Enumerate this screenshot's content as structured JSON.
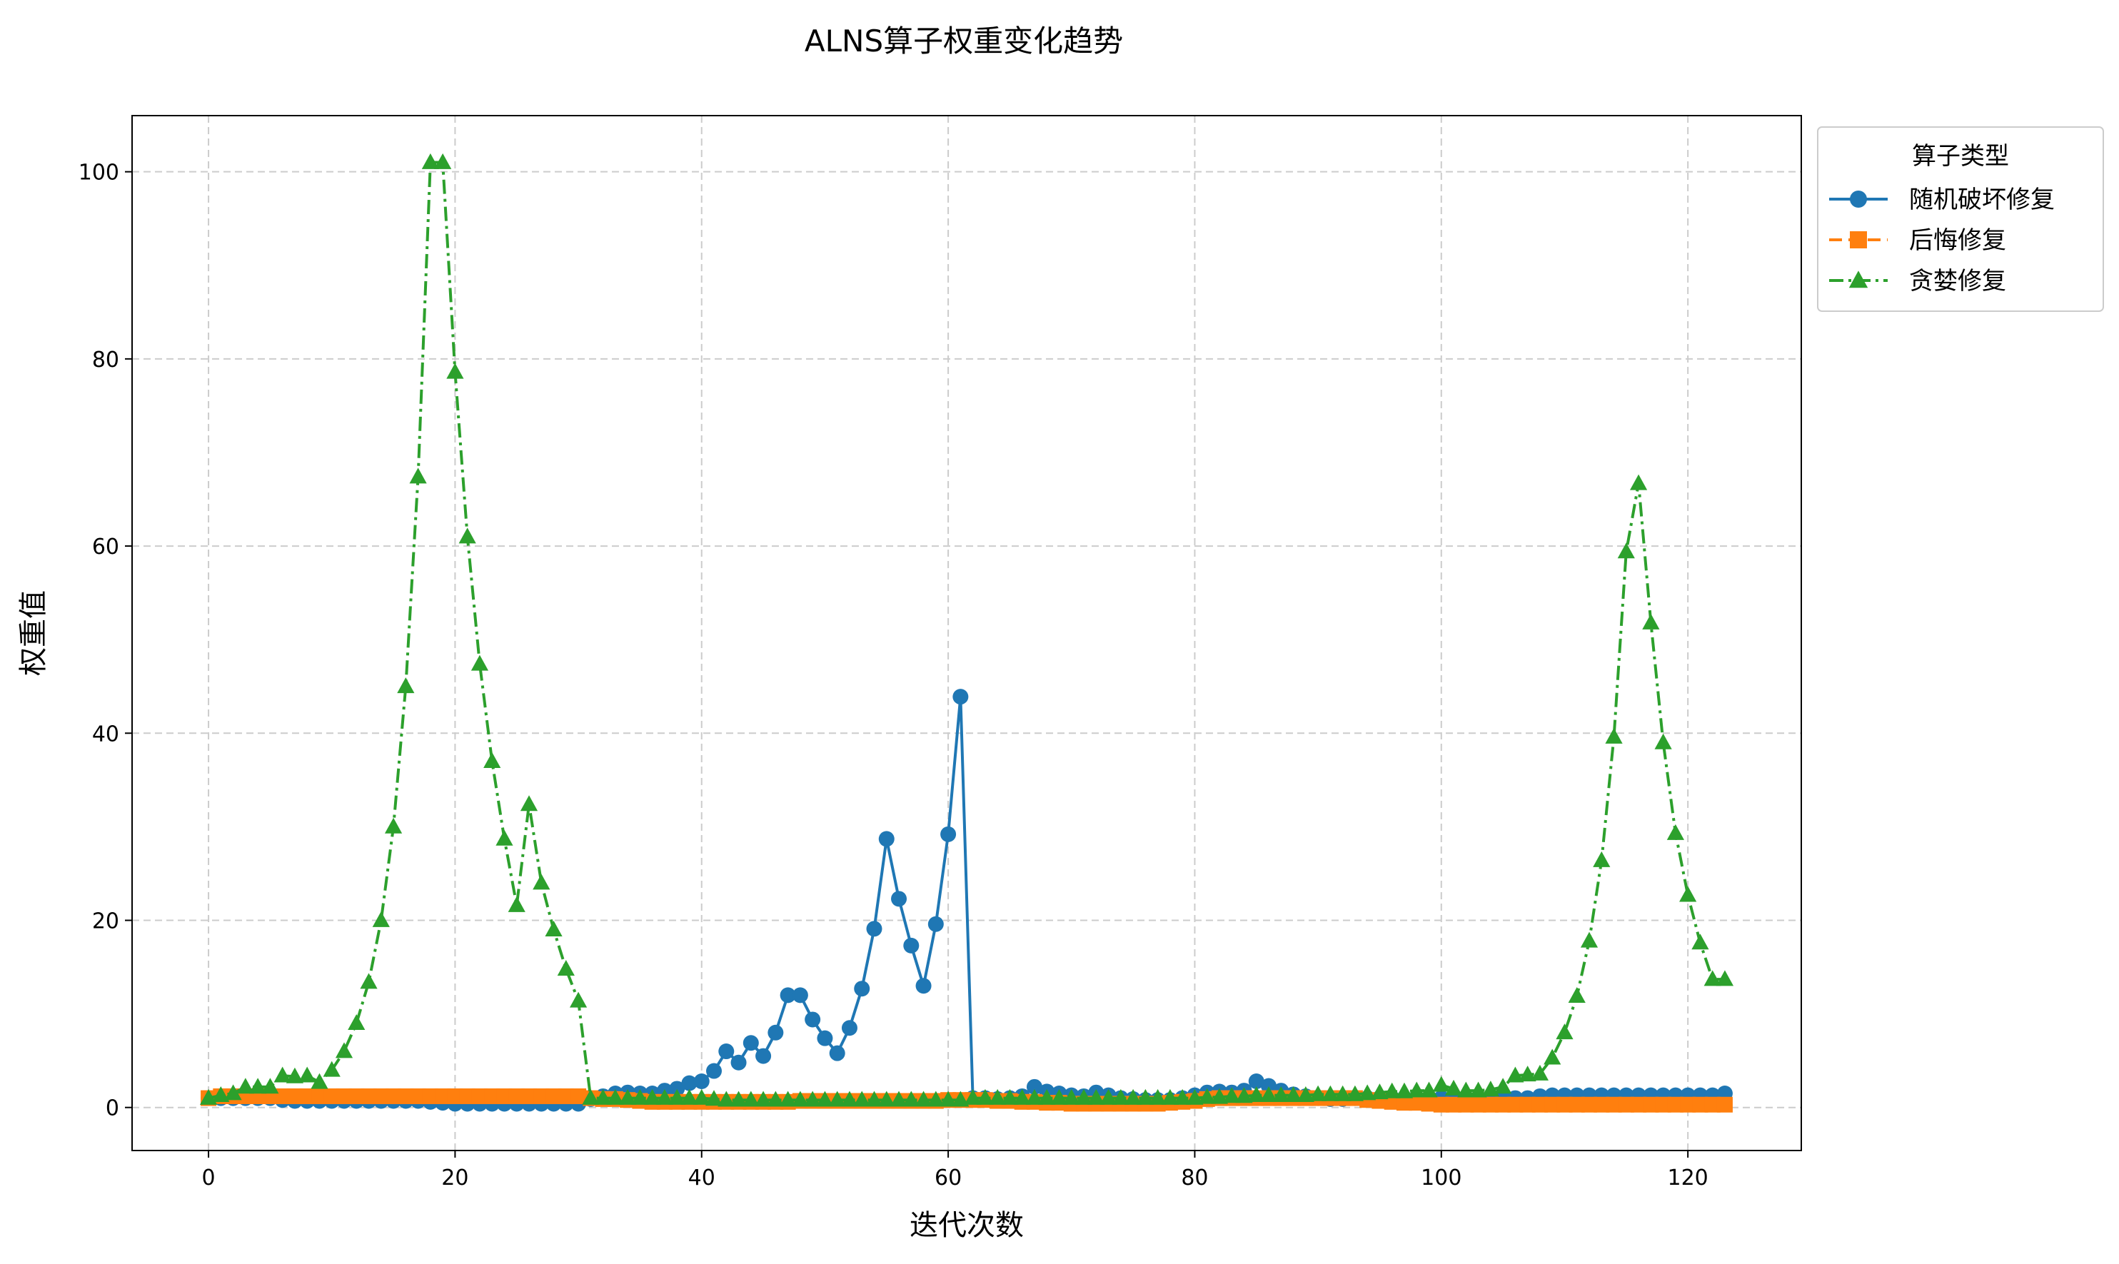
{
  "chart_data": {
    "type": "line",
    "title": "ALNS算子权重变化趋势",
    "xlabel": "迭代次数",
    "ylabel": "权重值",
    "xlim": [
      -6.2,
      129.2
    ],
    "ylim": [
      -4.6,
      106
    ],
    "xticks": [
      0,
      20,
      40,
      60,
      80,
      100,
      120
    ],
    "yticks": [
      0,
      20,
      40,
      60,
      80,
      100
    ],
    "xtick_labels": [
      "0",
      "20",
      "40",
      "60",
      "80",
      "100",
      "120"
    ],
    "ytick_labels": [
      "0",
      "20",
      "40",
      "60",
      "80",
      "100"
    ],
    "grid": true,
    "legend": {
      "title": "算子类型",
      "placement": "outside-top-right"
    },
    "series": [
      {
        "name": "随机破坏修复",
        "color": "#1f77b4",
        "marker": "circle",
        "linestyle": "solid",
        "x": [
          0,
          1,
          2,
          3,
          4,
          5,
          6,
          7,
          8,
          9,
          10,
          11,
          12,
          13,
          14,
          15,
          16,
          17,
          18,
          19,
          20,
          21,
          22,
          23,
          24,
          25,
          26,
          27,
          28,
          29,
          30,
          31,
          32,
          33,
          34,
          35,
          36,
          37,
          38,
          39,
          40,
          41,
          42,
          43,
          44,
          45,
          46,
          47,
          48,
          49,
          50,
          51,
          52,
          53,
          54,
          55,
          56,
          57,
          58,
          59,
          60,
          61,
          62,
          63,
          64,
          65,
          66,
          67,
          68,
          69,
          70,
          71,
          72,
          73,
          74,
          75,
          76,
          77,
          78,
          79,
          80,
          81,
          82,
          83,
          84,
          85,
          86,
          87,
          88,
          89,
          90,
          91,
          92,
          93,
          94,
          95,
          96,
          97,
          98,
          99,
          100,
          101,
          102,
          103,
          104,
          105,
          106,
          107,
          108,
          109,
          110,
          111,
          112,
          113,
          114,
          115,
          116,
          117,
          118,
          119,
          120,
          121,
          122,
          123
        ],
        "y": [
          1,
          1,
          1,
          1,
          1,
          1,
          0.8,
          0.7,
          0.7,
          0.7,
          0.7,
          0.7,
          0.7,
          0.7,
          0.7,
          0.7,
          0.7,
          0.7,
          0.6,
          0.5,
          0.4,
          0.4,
          0.4,
          0.4,
          0.4,
          0.4,
          0.4,
          0.4,
          0.4,
          0.4,
          0.4,
          0.9,
          1.2,
          1.5,
          1.6,
          1.5,
          1.5,
          1.8,
          2,
          2.6,
          2.8,
          3.9,
          6,
          4.8,
          6.9,
          5.5,
          8,
          12,
          12,
          9.4,
          7.4,
          5.8,
          8.5,
          12.7,
          19.1,
          28.7,
          22.3,
          17.3,
          13,
          19.6,
          29.2,
          43.9,
          1,
          1,
          0.9,
          1,
          1.2,
          2.2,
          1.7,
          1.5,
          1.3,
          1.2,
          1.6,
          1.3,
          1,
          0.9,
          0.8,
          0.8,
          0.8,
          1,
          1.3,
          1.6,
          1.7,
          1.6,
          1.8,
          2.8,
          2.3,
          1.8,
          1.4,
          1.2,
          1,
          0.9,
          0.9,
          1,
          1,
          1,
          1,
          1,
          1,
          1,
          1,
          1,
          1,
          1,
          1,
          1,
          1,
          1,
          1.2,
          1.3,
          1.3,
          1.3,
          1.3,
          1.3,
          1.3,
          1.3,
          1.3,
          1.3,
          1.3,
          1.3,
          1.3,
          1.3,
          1.3,
          1.5
        ]
      },
      {
        "name": "后悔修复",
        "color": "#ff7f0e",
        "marker": "square",
        "linestyle": "dashed",
        "x": [
          0,
          1,
          2,
          3,
          4,
          5,
          6,
          7,
          8,
          9,
          10,
          11,
          12,
          13,
          14,
          15,
          16,
          17,
          18,
          19,
          20,
          21,
          22,
          23,
          24,
          25,
          26,
          27,
          28,
          29,
          30,
          31,
          32,
          33,
          34,
          35,
          36,
          37,
          38,
          39,
          40,
          41,
          42,
          43,
          44,
          45,
          46,
          47,
          48,
          49,
          50,
          51,
          52,
          53,
          54,
          55,
          56,
          57,
          58,
          59,
          60,
          61,
          62,
          63,
          64,
          65,
          66,
          67,
          68,
          69,
          70,
          71,
          72,
          73,
          74,
          75,
          76,
          77,
          78,
          79,
          80,
          81,
          82,
          83,
          84,
          85,
          86,
          87,
          88,
          89,
          90,
          91,
          92,
          93,
          94,
          95,
          96,
          97,
          98,
          99,
          100,
          101,
          102,
          103,
          104,
          105,
          106,
          107,
          108,
          109,
          110,
          111,
          112,
          113,
          114,
          115,
          116,
          117,
          118,
          119,
          120,
          121,
          122,
          123
        ],
        "y": [
          1,
          1.2,
          1.2,
          1.2,
          1.2,
          1.2,
          1.2,
          1.2,
          1.2,
          1.2,
          1.2,
          1.2,
          1.2,
          1.2,
          1.2,
          1.2,
          1.2,
          1.2,
          1.2,
          1.2,
          1.2,
          1.2,
          1.2,
          1.2,
          1.2,
          1.2,
          1.2,
          1.2,
          1.2,
          1.2,
          1.2,
          1,
          0.9,
          0.9,
          0.8,
          0.7,
          0.6,
          0.6,
          0.6,
          0.6,
          0.6,
          0.6,
          0.6,
          0.6,
          0.6,
          0.6,
          0.6,
          0.6,
          0.7,
          0.7,
          0.7,
          0.7,
          0.7,
          0.7,
          0.7,
          0.7,
          0.7,
          0.7,
          0.7,
          0.7,
          0.8,
          0.8,
          0.8,
          0.8,
          0.7,
          0.7,
          0.6,
          0.6,
          0.5,
          0.5,
          0.4,
          0.4,
          0.4,
          0.4,
          0.4,
          0.4,
          0.4,
          0.4,
          0.5,
          0.6,
          0.7,
          0.9,
          1,
          1,
          1,
          1,
          1,
          1,
          1,
          1,
          1,
          1,
          1,
          1,
          0.8,
          0.7,
          0.6,
          0.5,
          0.5,
          0.4,
          0.3,
          0.3,
          0.3,
          0.3,
          0.3,
          0.3,
          0.3,
          0.3,
          0.3,
          0.3,
          0.3,
          0.3,
          0.3,
          0.3,
          0.3,
          0.3,
          0.3,
          0.3,
          0.3,
          0.3,
          0.3,
          0.3,
          0.3,
          0.3
        ]
      },
      {
        "name": "贪婪修复",
        "color": "#2ca02c",
        "marker": "triangle",
        "linestyle": "dashdot",
        "x": [
          0,
          1,
          2,
          3,
          4,
          5,
          6,
          7,
          8,
          9,
          10,
          11,
          12,
          13,
          14,
          15,
          16,
          17,
          18,
          19,
          20,
          21,
          22,
          23,
          24,
          25,
          26,
          27,
          28,
          29,
          30,
          31,
          32,
          33,
          34,
          35,
          36,
          37,
          38,
          39,
          40,
          41,
          42,
          43,
          44,
          45,
          46,
          47,
          48,
          49,
          50,
          51,
          52,
          53,
          54,
          55,
          56,
          57,
          58,
          59,
          60,
          61,
          62,
          63,
          64,
          65,
          66,
          67,
          68,
          69,
          70,
          71,
          72,
          73,
          74,
          75,
          76,
          77,
          78,
          79,
          80,
          81,
          82,
          83,
          84,
          85,
          86,
          87,
          88,
          89,
          90,
          91,
          92,
          93,
          94,
          95,
          96,
          97,
          98,
          99,
          100,
          101,
          102,
          103,
          104,
          105,
          106,
          107,
          108,
          109,
          110,
          111,
          112,
          113,
          114,
          115,
          116,
          117,
          118,
          119,
          120,
          121,
          122,
          123
        ],
        "y": [
          1,
          1.3,
          1.5,
          2.2,
          2.2,
          2.2,
          3.4,
          3.3,
          3.4,
          2.7,
          4,
          6,
          9,
          13.4,
          20,
          30,
          45,
          67.4,
          101,
          101,
          78.6,
          61,
          47.4,
          37,
          28.7,
          21.6,
          32.4,
          24,
          19,
          14.8,
          11.4,
          1,
          1,
          1,
          1,
          1,
          1,
          1,
          1,
          1,
          1,
          0.9,
          0.8,
          0.8,
          0.8,
          0.8,
          0.8,
          0.8,
          0.8,
          0.8,
          0.8,
          0.8,
          0.8,
          0.8,
          0.8,
          0.8,
          0.8,
          0.8,
          0.8,
          0.8,
          0.8,
          0.8,
          1,
          1,
          1,
          1,
          1,
          1,
          1,
          1,
          1,
          1,
          1,
          1,
          1,
          1,
          1,
          1,
          1,
          1,
          1,
          1.1,
          1.1,
          1.2,
          1.2,
          1.3,
          1.3,
          1.3,
          1.3,
          1.3,
          1.4,
          1.4,
          1.4,
          1.4,
          1.5,
          1.6,
          1.7,
          1.7,
          1.8,
          1.8,
          2.4,
          2,
          1.8,
          1.8,
          1.9,
          2.2,
          3.4,
          3.5,
          3.6,
          5.3,
          8,
          11.9,
          17.8,
          26.4,
          39.6,
          59.4,
          66.7,
          51.8,
          39,
          29.3,
          22.7,
          17.6,
          13.7,
          13.7
        ]
      }
    ]
  }
}
